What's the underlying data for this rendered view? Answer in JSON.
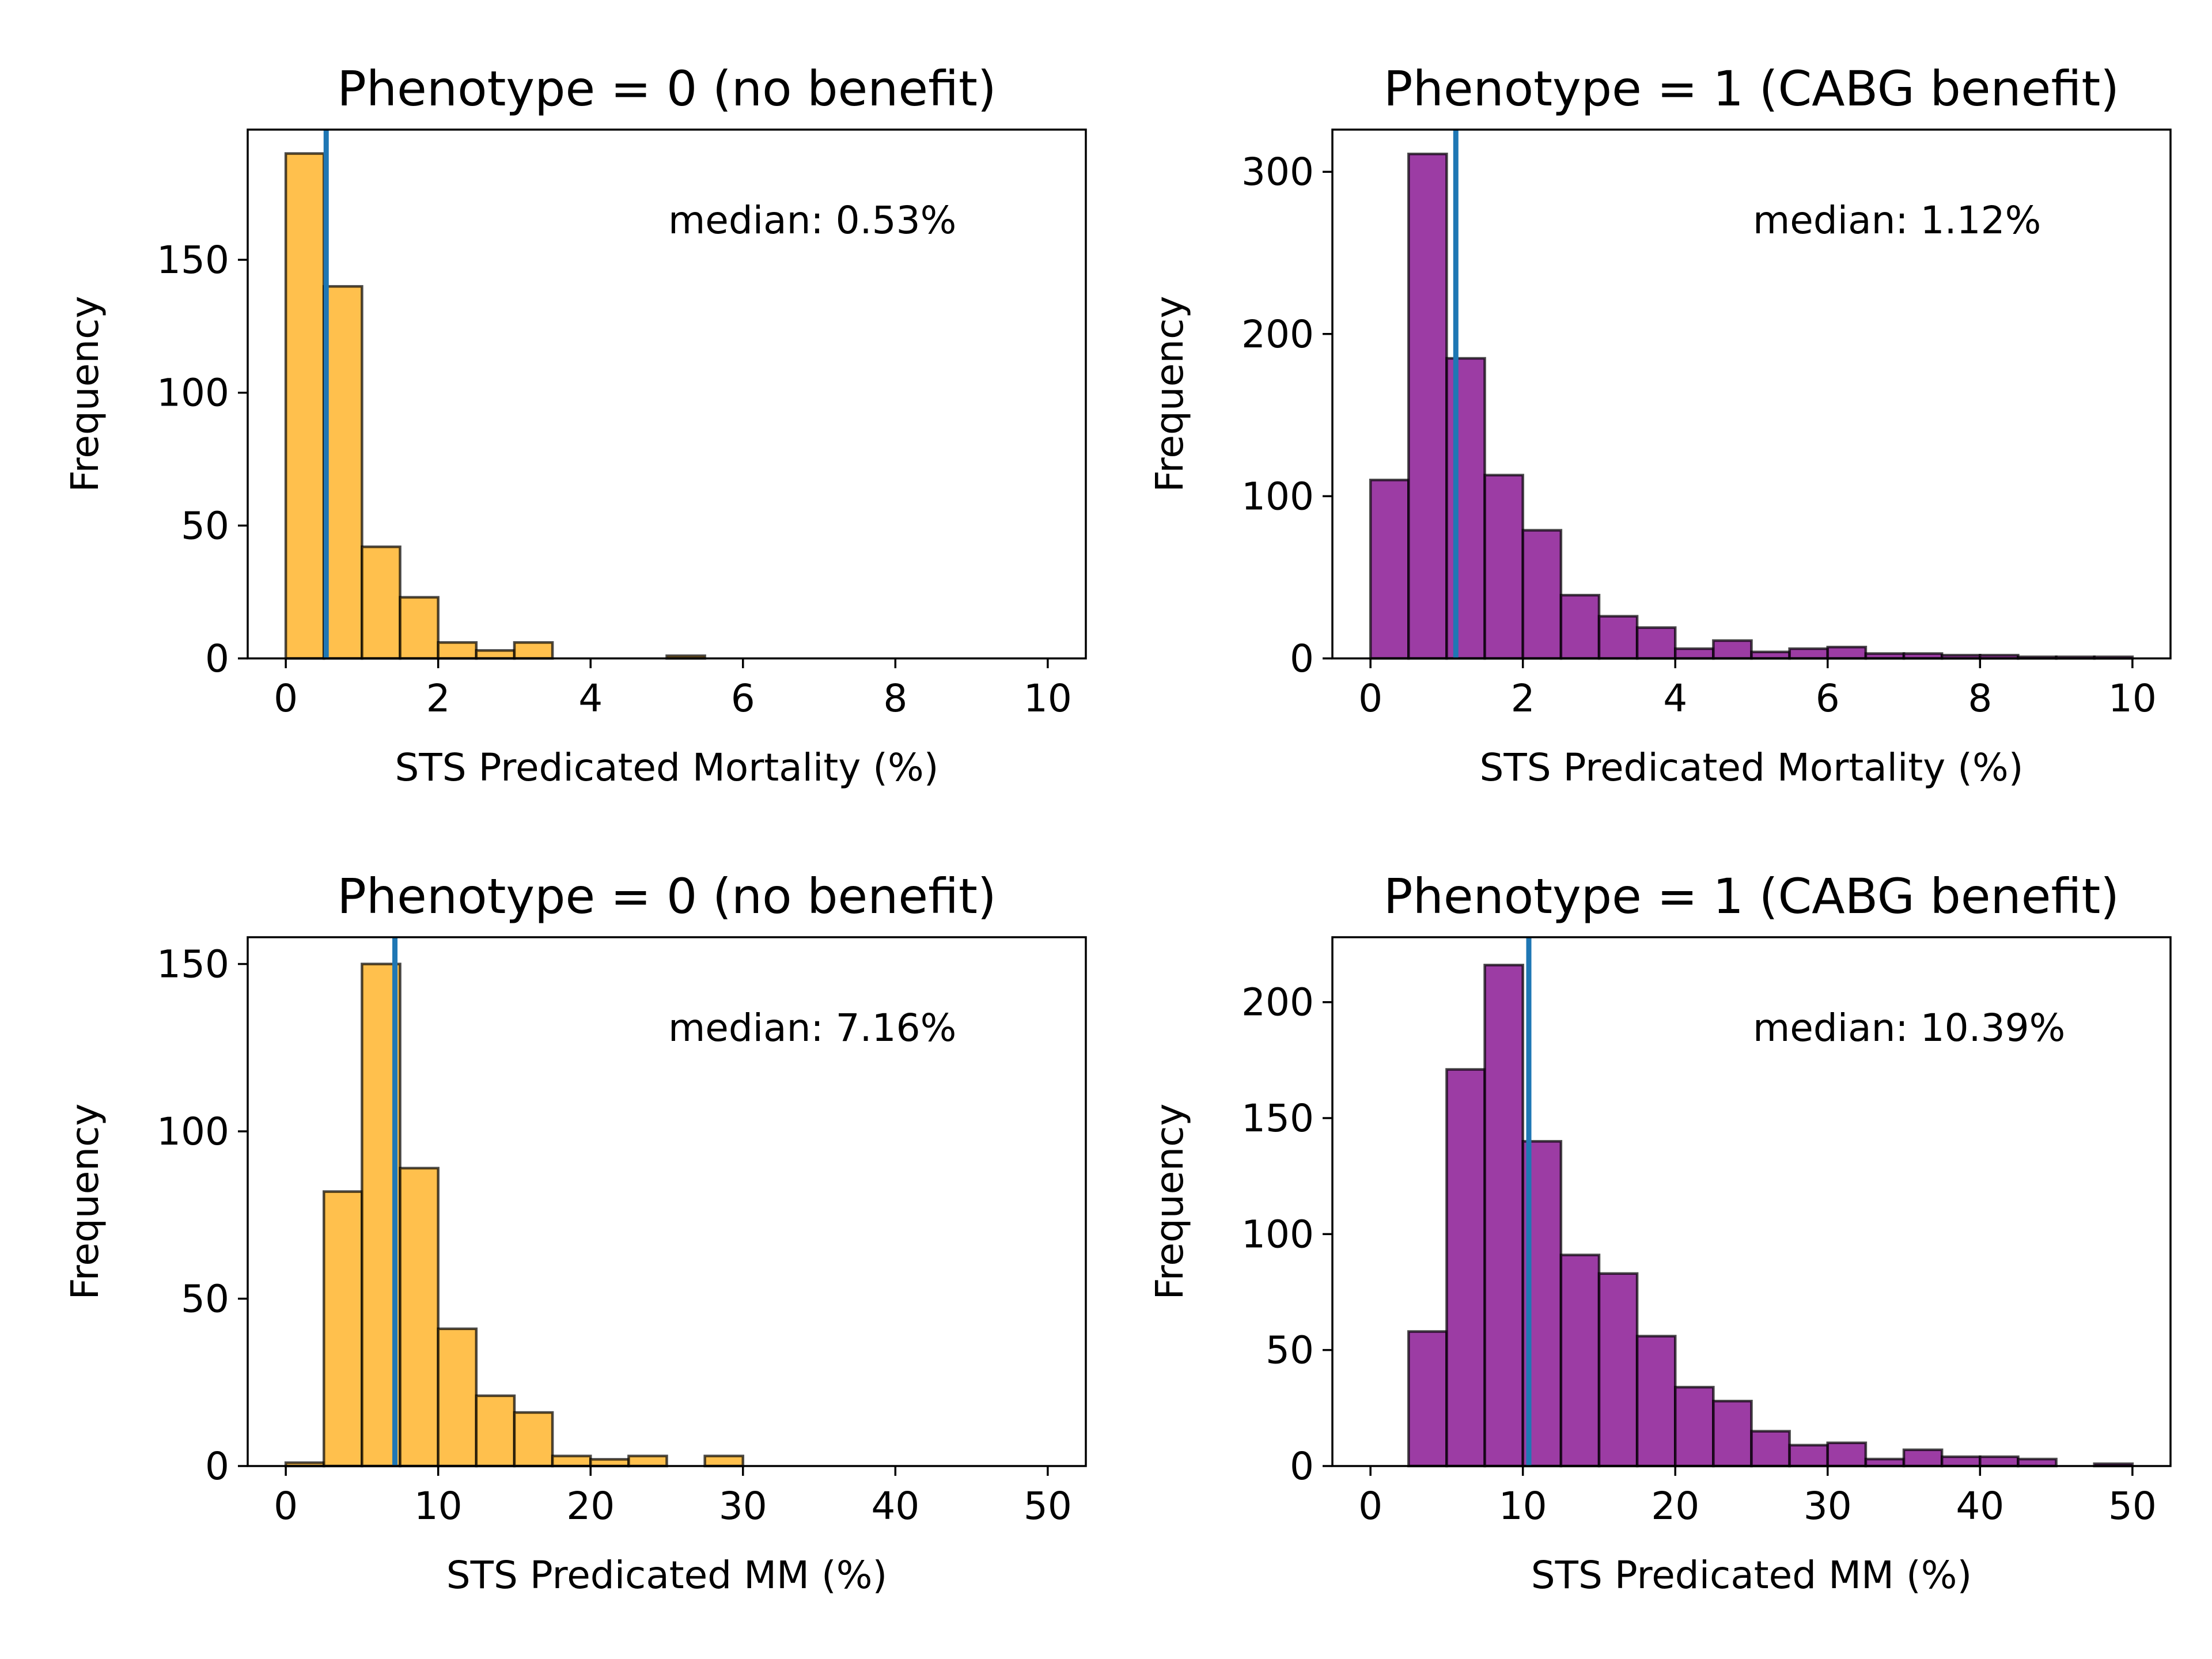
{
  "figure": {
    "background": "#ffffff"
  },
  "chart_data": [
    {
      "type": "bar",
      "title": "Phenotype = 0 (no benefit)",
      "xlabel": "STS Predicated Mortality (%)",
      "ylabel": "Frequency",
      "xlim": [
        -0.5,
        10.5
      ],
      "ylim": [
        0,
        199
      ],
      "xticks": [
        0,
        2,
        4,
        6,
        8,
        10
      ],
      "yticks": [
        0,
        50,
        100,
        150
      ],
      "bin_edges": [
        0,
        0.5,
        1,
        1.5,
        2,
        2.5,
        3,
        3.5,
        4,
        4.5,
        5,
        5.5,
        6,
        6.5,
        7,
        7.5,
        8,
        8.5,
        9,
        9.5,
        10
      ],
      "values": [
        190,
        140,
        42,
        23,
        6,
        3,
        6,
        0,
        0,
        0,
        1,
        0,
        0,
        0,
        0,
        0,
        0,
        0,
        0,
        0
      ],
      "bar_color": "#FFB52E",
      "median_value": 0.53,
      "median_label": "median: 0.53%",
      "median_color": "#1f77b4",
      "grid": false
    },
    {
      "type": "bar",
      "title": "Phenotype = 1 (CABG benefit)",
      "xlabel": "STS Predicated Mortality (%)",
      "ylabel": "Frequency",
      "xlim": [
        -0.5,
        10.5
      ],
      "ylim": [
        0,
        326
      ],
      "xticks": [
        0,
        2,
        4,
        6,
        8,
        10
      ],
      "yticks": [
        0,
        100,
        200,
        300
      ],
      "bin_edges": [
        0,
        0.5,
        1,
        1.5,
        2,
        2.5,
        3,
        3.5,
        4,
        4.5,
        5,
        5.5,
        6,
        6.5,
        7,
        7.5,
        8,
        8.5,
        9,
        9.5,
        10
      ],
      "values": [
        110,
        311,
        185,
        113,
        79,
        39,
        26,
        19,
        6,
        11,
        4,
        6,
        7,
        3,
        3,
        2,
        2,
        1,
        1,
        1
      ],
      "bar_color": "#8B1A94",
      "median_value": 1.12,
      "median_label": "median: 1.12%",
      "median_color": "#1f77b4",
      "grid": false
    },
    {
      "type": "bar",
      "title": "Phenotype = 0 (no benefit)",
      "xlabel": "STS Predicated MM (%)",
      "ylabel": "Frequency",
      "xlim": [
        -2.5,
        52.5
      ],
      "ylim": [
        0,
        158
      ],
      "xticks": [
        0,
        10,
        20,
        30,
        40,
        50
      ],
      "yticks": [
        0,
        50,
        100,
        150
      ],
      "bin_edges": [
        0,
        2.5,
        5,
        7.5,
        10,
        12.5,
        15,
        17.5,
        20,
        22.5,
        25,
        27.5,
        30,
        32.5,
        35,
        37.5,
        40,
        42.5,
        45,
        47.5,
        50
      ],
      "values": [
        1,
        82,
        150,
        89,
        41,
        21,
        16,
        3,
        2,
        3,
        0,
        3,
        0,
        0,
        0,
        0,
        0,
        0,
        0,
        0
      ],
      "bar_color": "#FFB52E",
      "median_value": 7.16,
      "median_label": "median: 7.16%",
      "median_color": "#1f77b4",
      "grid": false
    },
    {
      "type": "bar",
      "title": "Phenotype = 1 (CABG benefit)",
      "xlabel": "STS Predicated MM (%)",
      "ylabel": "Frequency",
      "xlim": [
        -2.5,
        52.5
      ],
      "ylim": [
        0,
        228
      ],
      "xticks": [
        0,
        10,
        20,
        30,
        40,
        50
      ],
      "yticks": [
        0,
        50,
        100,
        150,
        200
      ],
      "bin_edges": [
        0,
        2.5,
        5,
        7.5,
        10,
        12.5,
        15,
        17.5,
        20,
        22.5,
        25,
        27.5,
        30,
        32.5,
        35,
        37.5,
        40,
        42.5,
        45,
        47.5,
        50
      ],
      "values": [
        0,
        58,
        171,
        216,
        140,
        91,
        83,
        56,
        34,
        28,
        15,
        9,
        10,
        3,
        7,
        4,
        4,
        3,
        0,
        1
      ],
      "bar_color": "#8B1A94",
      "median_value": 10.39,
      "median_label": "median: 10.39%",
      "median_color": "#1f77b4",
      "grid": false
    }
  ]
}
